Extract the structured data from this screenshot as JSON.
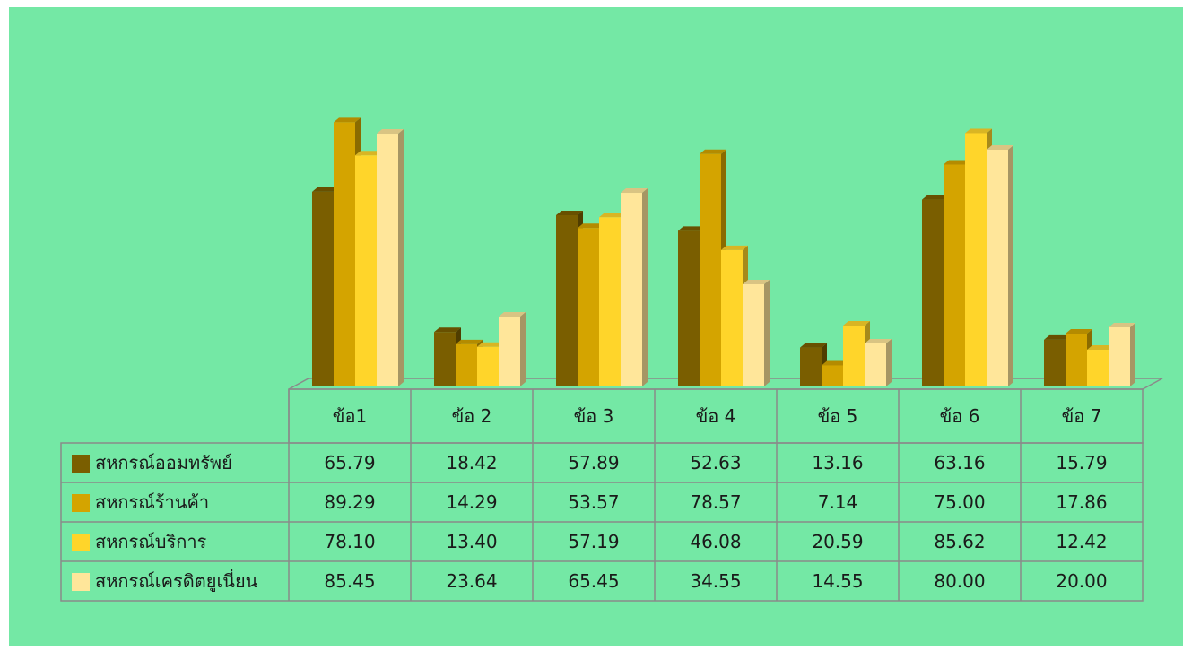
{
  "chart_data": {
    "type": "bar",
    "categories": [
      "ข้อ1",
      "ข้อ 2",
      "ข้อ 3",
      "ข้อ 4",
      "ข้อ 5",
      "ข้อ 6",
      "ข้อ 7"
    ],
    "series": [
      {
        "name": "สหกรณ์ออมทรัพย์",
        "color": "#7a5e00",
        "values": [
          65.79,
          18.42,
          57.89,
          52.63,
          13.16,
          63.16,
          15.79
        ]
      },
      {
        "name": "สหกรณ์ร้านค้า",
        "color": "#d4a400",
        "values": [
          89.29,
          14.29,
          53.57,
          78.57,
          7.14,
          75.0,
          17.86
        ]
      },
      {
        "name": "สหกรณ์บริการ",
        "color": "#ffd52a",
        "values": [
          78.1,
          13.4,
          57.19,
          46.08,
          20.59,
          85.62,
          12.42
        ]
      },
      {
        "name": "สหกรณ์เครดิตยูเนี่ยน",
        "color": "#ffe69a",
        "values": [
          85.45,
          23.64,
          65.45,
          34.55,
          14.55,
          80.0,
          20.0
        ]
      }
    ],
    "value_labels": [
      [
        "65.79",
        "18.42",
        "57.89",
        "52.63",
        "13.16",
        "63.16",
        "15.79"
      ],
      [
        "89.29",
        "14.29",
        "53.57",
        "78.57",
        "7.14",
        "75.00",
        "17.86"
      ],
      [
        "78.10",
        "13.40",
        "57.19",
        "46.08",
        "20.59",
        "85.62",
        "12.42"
      ],
      [
        "85.45",
        "23.64",
        "65.45",
        "34.55",
        "14.55",
        "80.00",
        "20.00"
      ]
    ],
    "ylim": [
      0,
      100
    ],
    "grid": false,
    "legend": "data-table",
    "style": "3d-column"
  },
  "colors": {
    "background": "#74e8a5",
    "grid": "#8a8a8a"
  }
}
